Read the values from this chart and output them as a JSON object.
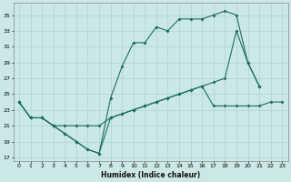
{
  "bg_color": "#cce8e6",
  "line_color": "#1a6e62",
  "grid_color": "#aad4d0",
  "xlabel": "Humidex (Indice chaleur)",
  "xlim": [
    -0.5,
    23.5
  ],
  "ylim": [
    16.5,
    36.5
  ],
  "yticks": [
    17,
    19,
    21,
    23,
    25,
    27,
    29,
    31,
    33,
    35
  ],
  "xticks": [
    0,
    1,
    2,
    3,
    4,
    5,
    6,
    7,
    8,
    9,
    10,
    11,
    12,
    13,
    14,
    15,
    16,
    17,
    18,
    19,
    20,
    21,
    22,
    23
  ],
  "line1_x": [
    0,
    1,
    2,
    3,
    4,
    5,
    6,
    7,
    8,
    9,
    10,
    11,
    12,
    13,
    14,
    15,
    16,
    17,
    18,
    19,
    20,
    21
  ],
  "line1_y": [
    24,
    22,
    22,
    21,
    20,
    19,
    18,
    17.5,
    24.5,
    28.5,
    31.5,
    31.5,
    33.5,
    33,
    34.5,
    34.5,
    34.5,
    35,
    35.5,
    35,
    29,
    26
  ],
  "line2_x": [
    0,
    1,
    2,
    3,
    4,
    5,
    6,
    7,
    8,
    9,
    10,
    11,
    12,
    13,
    14,
    15,
    16,
    17,
    18,
    19,
    20,
    21
  ],
  "line2_y": [
    24,
    22,
    22,
    21,
    20,
    19,
    18,
    17.5,
    22,
    22.5,
    23,
    23.5,
    24,
    24.5,
    25,
    25.5,
    26,
    26.5,
    27,
    33,
    29,
    26
  ],
  "line3_x": [
    0,
    1,
    2,
    3,
    4,
    5,
    6,
    7,
    8,
    9,
    10,
    11,
    12,
    13,
    14,
    15,
    16,
    17,
    18,
    19,
    20,
    21,
    22,
    23
  ],
  "line3_y": [
    24,
    22,
    22,
    21,
    21,
    21,
    21,
    21,
    22,
    22.5,
    23,
    23.5,
    24,
    24.5,
    25,
    25.5,
    26,
    23.5,
    23.5,
    23.5,
    23.5,
    23.5,
    24,
    24
  ]
}
